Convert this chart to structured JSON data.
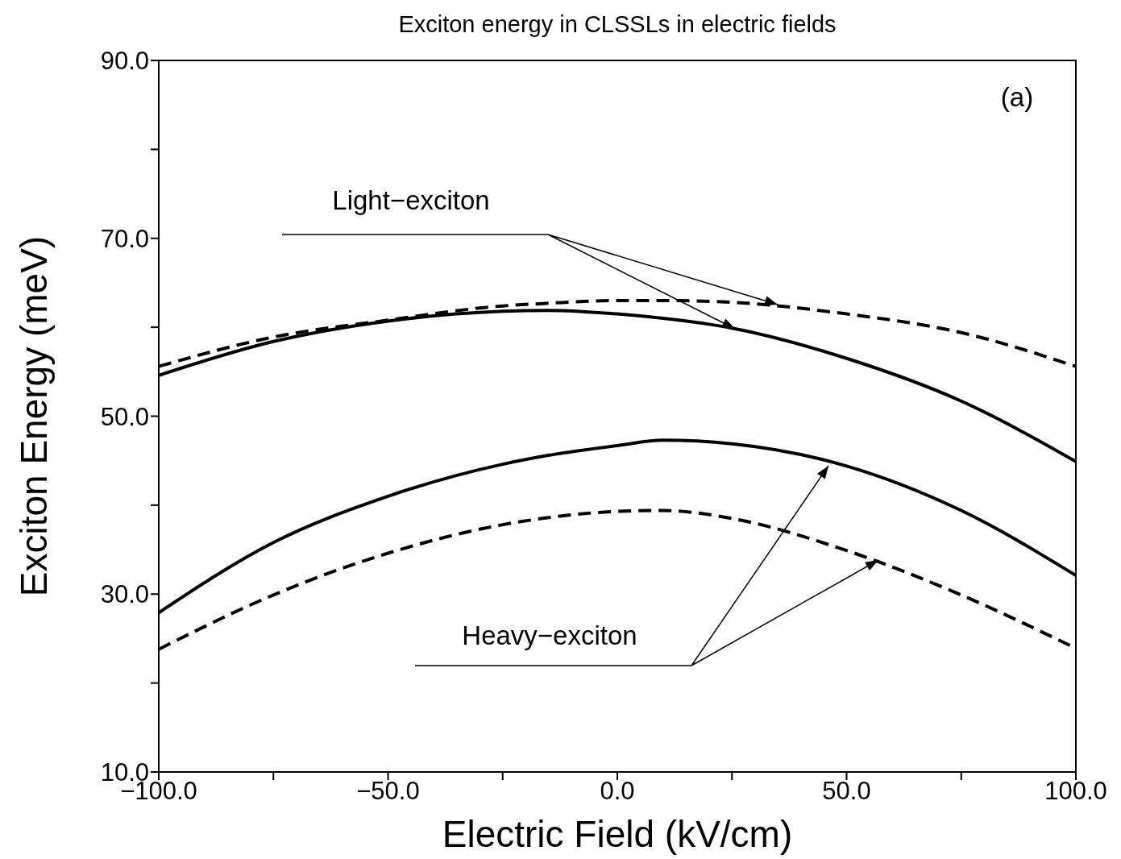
{
  "chart_data": {
    "type": "line",
    "title": "Exciton energy in CLSSLs in electric fields",
    "xlabel": "Electric Field (kV/cm)",
    "ylabel": "Exciton Energy (meV)",
    "x": [
      -100,
      -75,
      -50,
      -25,
      -15,
      0,
      10,
      25,
      50,
      75,
      100
    ],
    "series": [
      {
        "color": "#000000",
        "line_style": "solid",
        "values": [
          54.6,
          58.4,
          60.7,
          61.8,
          61.9,
          61.5,
          61.0,
          59.9,
          56.5,
          51.7,
          44.9
        ]
      },
      {
        "color": "#000000",
        "line_style": "dashed",
        "values": [
          55.6,
          58.9,
          60.8,
          62.4,
          62.7,
          63.0,
          63.0,
          62.8,
          61.5,
          59.4,
          55.6
        ]
      },
      {
        "color": "#000000",
        "line_style": "solid",
        "values": [
          27.9,
          35.8,
          41.0,
          44.6,
          45.6,
          46.7,
          47.3,
          46.9,
          44.4,
          39.4,
          32.1
        ]
      },
      {
        "color": "#000000",
        "line_style": "dashed",
        "values": [
          23.8,
          29.9,
          34.6,
          37.8,
          38.6,
          39.3,
          39.4,
          38.5,
          34.9,
          29.9,
          23.9
        ]
      }
    ],
    "xlim": [
      -100,
      100
    ],
    "xticks": [
      {
        "value": -100,
        "label": "−100.0"
      },
      {
        "value": -75,
        "label": null
      },
      {
        "value": -50,
        "label": "−50.0"
      },
      {
        "value": -25,
        "label": null
      },
      {
        "value": 0,
        "label": "0.0"
      },
      {
        "value": 25,
        "label": null
      },
      {
        "value": 50,
        "label": "50.0"
      },
      {
        "value": 75,
        "label": null
      },
      {
        "value": 100,
        "label": "100.0"
      }
    ],
    "ylim": [
      10,
      90
    ],
    "yticks": [
      {
        "value": 10,
        "label": "10.0"
      },
      {
        "value": 20,
        "label": null
      },
      {
        "value": 30,
        "label": "30.0"
      },
      {
        "value": 40,
        "label": null
      },
      {
        "value": 50,
        "label": "50.0"
      },
      {
        "value": 60,
        "label": null
      },
      {
        "value": 70,
        "label": "70.0"
      },
      {
        "value": 80,
        "label": null
      },
      {
        "value": 90,
        "label": "90.0"
      }
    ],
    "annotations": [
      "(a)",
      "Light−exciton",
      "Heavy−exciton"
    ],
    "grid": false,
    "marker": "none"
  }
}
